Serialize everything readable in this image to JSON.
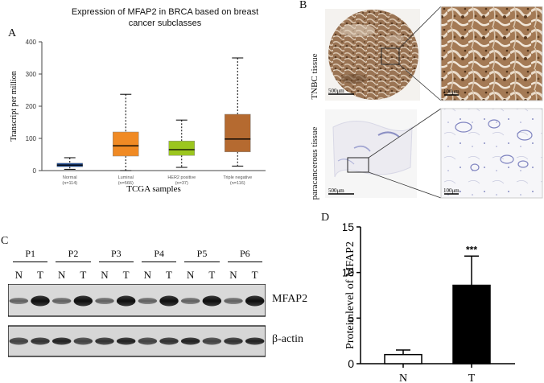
{
  "panels": {
    "a": {
      "letter": "A",
      "chart_data": {
        "type": "box",
        "title": "Expression of MFAP2 in BRCA based on breast cancer subclasses",
        "title_lines": [
          "Expression of MFAP2 in BRCA based on breast",
          "cancer subclasses"
        ],
        "xlabel": "TCGA samples",
        "ylabel": "Transcript per million",
        "ylim": [
          0,
          400
        ],
        "yticks": [
          0,
          100,
          200,
          300,
          400
        ],
        "grid": false,
        "categories": [
          {
            "name": "Normal",
            "n": "(n=114)",
            "color": "#1f4e9a",
            "min": 4,
            "q1": 12,
            "median": 17,
            "q3": 23,
            "max": 40
          },
          {
            "name": "Luminal",
            "n": "(n=566)",
            "color": "#f08a24",
            "min": 0,
            "q1": 45,
            "median": 77,
            "q3": 120,
            "max": 237
          },
          {
            "name": "HER2 positive",
            "n": "(n=37)",
            "color": "#9bc61e",
            "min": 10,
            "q1": 47,
            "median": 65,
            "q3": 92,
            "max": 157
          },
          {
            "name": "Triple negative",
            "n": "(n=116)",
            "color": "#b56a30",
            "min": 14,
            "q1": 58,
            "median": 98,
            "q3": 175,
            "max": 350
          }
        ]
      }
    },
    "b": {
      "letter": "B",
      "rows": [
        {
          "label": "TNBC tissue",
          "scale_left": "500μm",
          "scale_right": "100μm"
        },
        {
          "label": "paracancerous tissue",
          "scale_left": "500μm",
          "scale_right": "100μm"
        }
      ]
    },
    "c": {
      "letter": "C",
      "pairs": [
        "P1",
        "P2",
        "P3",
        "P4",
        "P5",
        "P6"
      ],
      "lanes": [
        "N",
        "T",
        "N",
        "T",
        "N",
        "T",
        "N",
        "T",
        "N",
        "T",
        "N",
        "T"
      ],
      "band_labels": [
        "MFAP2",
        "β-actin"
      ]
    },
    "d": {
      "letter": "D",
      "chart_data": {
        "type": "bar",
        "categories": [
          "N",
          "T"
        ],
        "values": [
          1.0,
          8.6
        ],
        "errors": [
          0.5,
          3.2
        ],
        "fills": [
          "#ffffff",
          "#000000"
        ],
        "ylabel": "Protein level of MFAP2",
        "ylim": [
          0,
          15
        ],
        "yticks": [
          0,
          5,
          10,
          15
        ],
        "annotation": "***",
        "grid": false
      }
    }
  }
}
